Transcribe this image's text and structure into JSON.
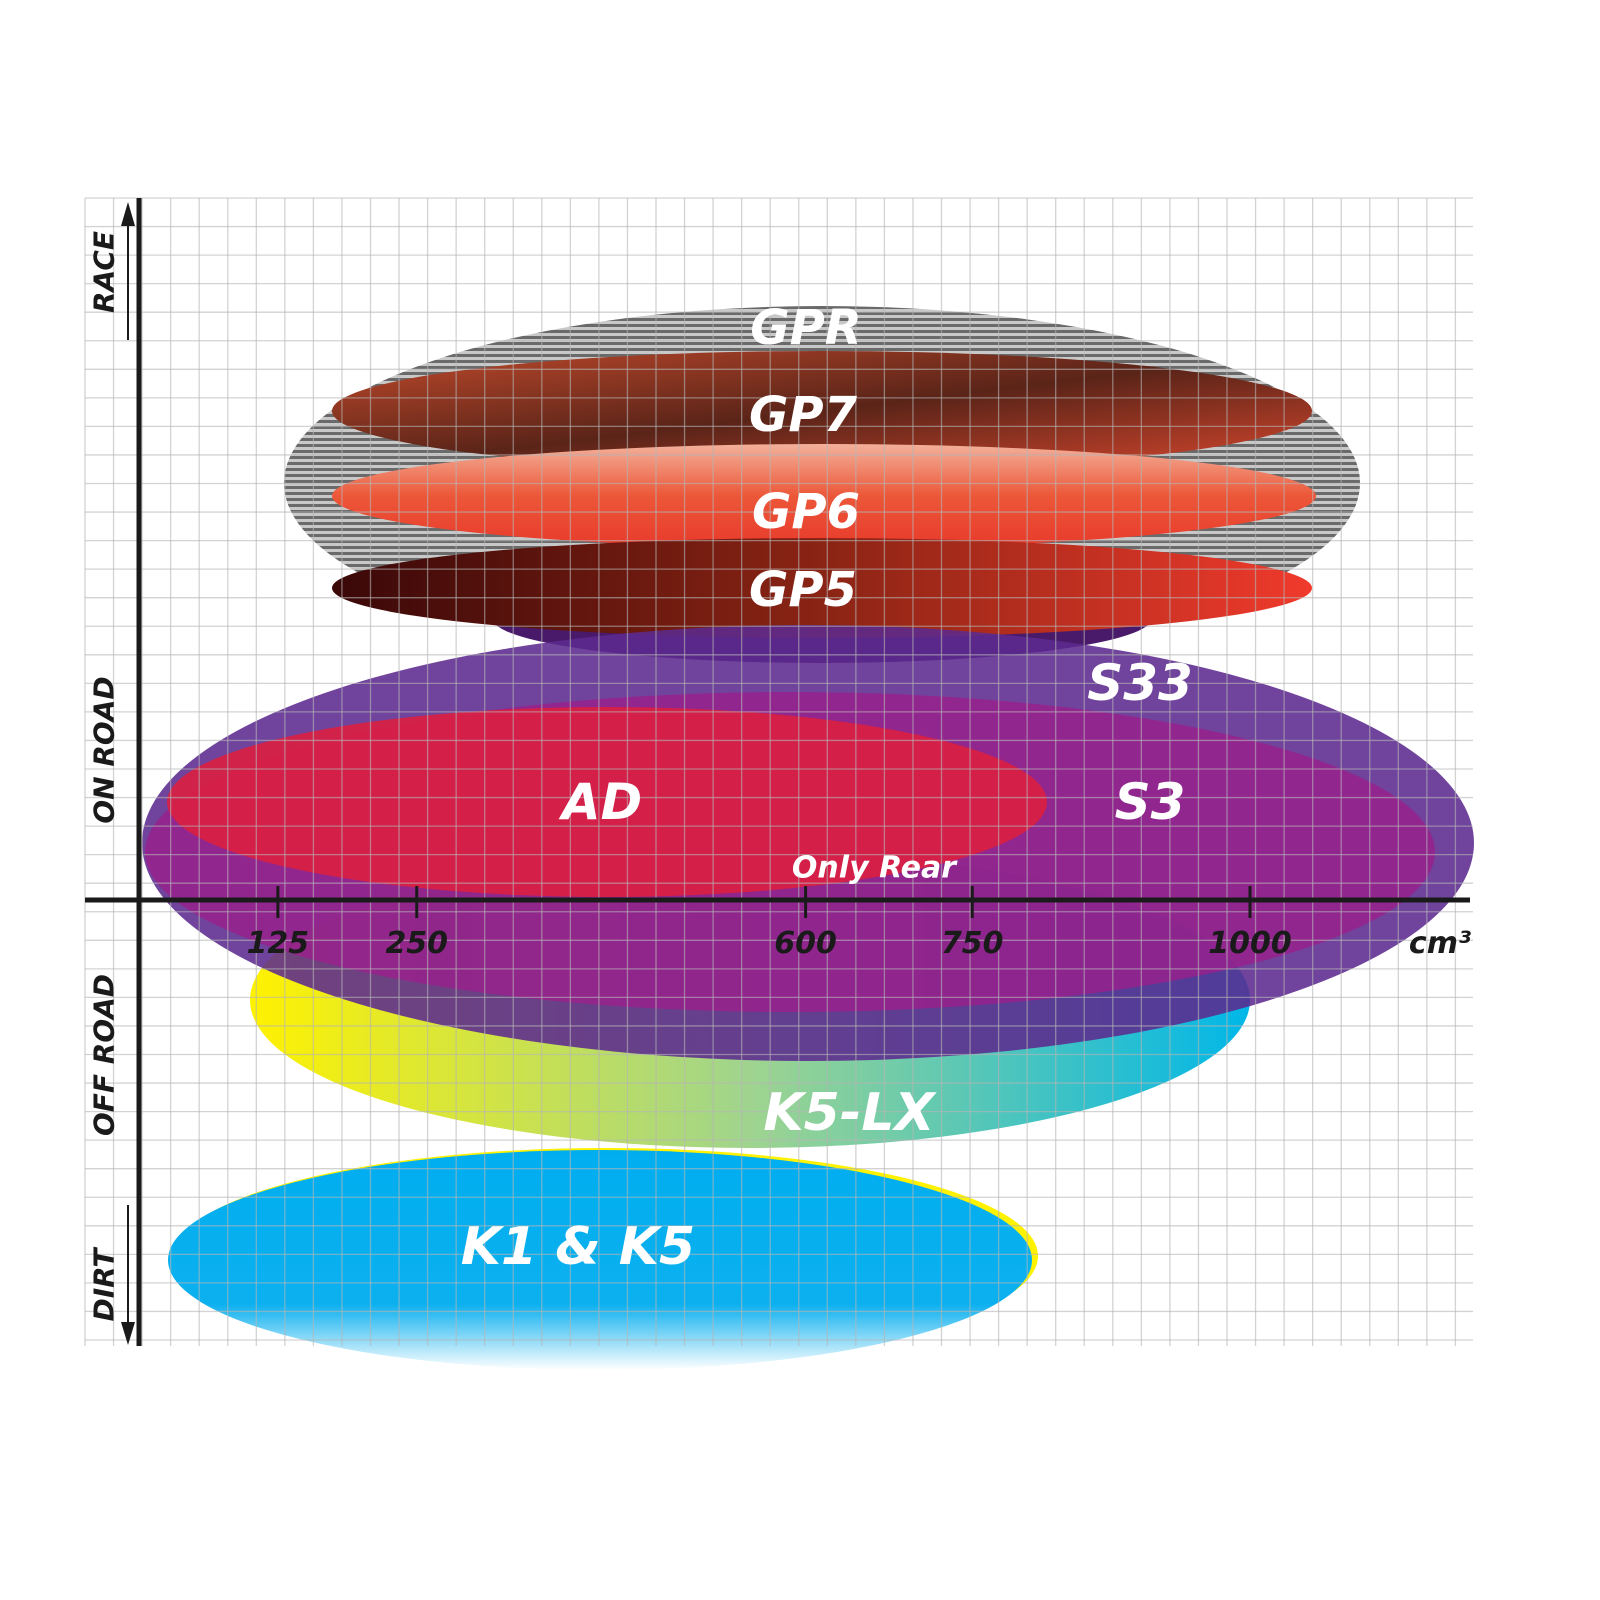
{
  "chart_data": {
    "type": "range-ellipse",
    "x_axis": {
      "ticks": [
        125,
        250,
        600,
        750,
        1000
      ],
      "unit": "cm³"
    },
    "y_axis": {
      "labels": [
        "RACE",
        "ON ROAD",
        "OFF ROAD",
        "DIRT"
      ]
    },
    "grid": true,
    "products": [
      {
        "name": "GPR",
        "color": "#9a9a9a"
      },
      {
        "name": "GP7",
        "color": "#8a3a22"
      },
      {
        "name": "GP6",
        "color": "#ea4a30"
      },
      {
        "name": "GP5",
        "color": "#c0291e"
      },
      {
        "name": "K5-LX",
        "color": "#1cc4dc"
      },
      {
        "name": "S33",
        "color": "#5c2a8e"
      },
      {
        "name": "S3",
        "color": "#9b1f8c"
      },
      {
        "name": "AD",
        "color": "#dc1f40"
      },
      {
        "name": "K1 & K5",
        "color": "#00aeef"
      }
    ],
    "annotations": [
      "Only Rear"
    ]
  }
}
